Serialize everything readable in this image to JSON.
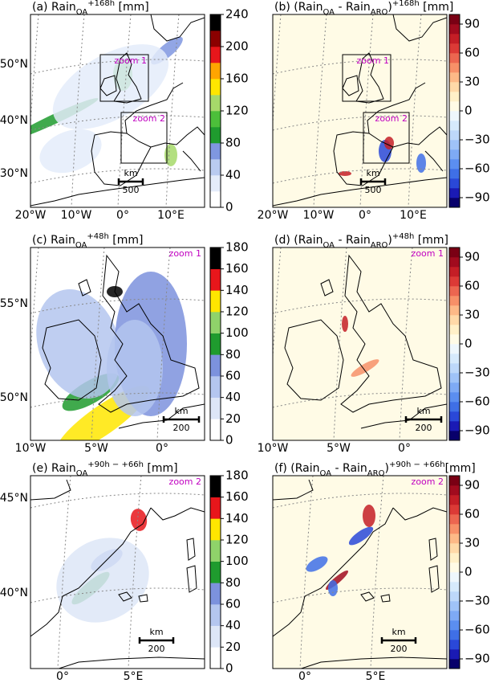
{
  "panels": [
    {
      "title": [
        {
          "text": "(a) Rain"
        },
        {
          "text": "OA",
          "shift": "sub"
        },
        {
          "text": "+168h",
          "shift": "super"
        },
        {
          "text": " [mm]"
        }
      ],
      "lat_labels": [
        "50°N",
        "40°N",
        "30°N"
      ],
      "lon_labels": [
        "20°W",
        "10°W",
        "0°",
        "10°E"
      ],
      "zoom_labels": [
        "zoom 1",
        "zoom 2"
      ],
      "scale": {
        "unit": "km",
        "length": "500"
      },
      "colorbar": {
        "lim": [
          0,
          240
        ],
        "ticks": [
          0,
          40,
          80,
          120,
          160,
          200,
          240
        ],
        "colors": [
          "#ffffff",
          "#e4ecfa",
          "#b9cbf0",
          "#7f97e0",
          "#1f9b2e",
          "#4cbf3a",
          "#a6d96a",
          "#ffe600",
          "#ffa500",
          "#e8161b",
          "#8b0000",
          "#000000"
        ]
      }
    },
    {
      "title": [
        {
          "text": "(b) (Rain"
        },
        {
          "text": "OA",
          "shift": "sub"
        },
        {
          "text": " - Rain"
        },
        {
          "text": "ARO",
          "shift": "sub"
        },
        {
          "text": ")"
        },
        {
          "text": "+168h",
          "shift": "super"
        },
        {
          "text": " [mm]"
        }
      ],
      "lon_labels": [
        "20°W",
        "10°W",
        "0°",
        "10°E"
      ],
      "zoom_labels": [
        "zoom 1",
        "zoom 2"
      ],
      "scale": {
        "unit": "km",
        "length": "500"
      },
      "colorbar": {
        "lim": [
          -100,
          100
        ],
        "ticks": [
          {
            "value": -90,
            "label": "−90"
          },
          {
            "value": -60,
            "label": "−60"
          },
          {
            "value": -30,
            "label": "−30"
          },
          0,
          30,
          60,
          90
        ],
        "colors": [
          "#08006b",
          "#1a1ab4",
          "#2a48d8",
          "#3f6fe6",
          "#5b8ef0",
          "#7eaaf5",
          "#9fc3f8",
          "#bdd8fa",
          "#d6eafc",
          "#eef7fc",
          "#fffbe6",
          "#fff0c8",
          "#ffd9a8",
          "#fdb987",
          "#f79068",
          "#ec6650",
          "#dc3a36",
          "#c41e26",
          "#a10b1e",
          "#7a0014"
        ]
      }
    },
    {
      "title": [
        {
          "text": "(c) Rain"
        },
        {
          "text": "OA",
          "shift": "sub"
        },
        {
          "text": "+48h",
          "shift": "super"
        },
        {
          "text": " [mm]"
        }
      ],
      "lat_labels": [
        "55°N",
        "50°N"
      ],
      "lon_labels": [
        "10°W",
        "5°W",
        "0°"
      ],
      "zoom_labels": [
        "zoom 1"
      ],
      "scale": {
        "unit": "km",
        "length": "200"
      },
      "colorbar": {
        "lim": [
          0,
          180
        ],
        "ticks": [
          0,
          20,
          40,
          60,
          80,
          100,
          120,
          140,
          160,
          180
        ],
        "colors": [
          "#ffffff",
          "#dde6f7",
          "#b4c6ef",
          "#7c92dd",
          "#1f9b2e",
          "#8fd36a",
          "#ffe600",
          "#e8161b",
          "#000000"
        ]
      }
    },
    {
      "title": [
        {
          "text": "(d) (Rain"
        },
        {
          "text": "OA",
          "shift": "sub"
        },
        {
          "text": " - Rain"
        },
        {
          "text": "ARO",
          "shift": "sub"
        },
        {
          "text": ")"
        },
        {
          "text": "+48h",
          "shift": "super"
        },
        {
          "text": " [mm]"
        }
      ],
      "lon_labels": [
        "10°W",
        "5°W",
        "0°"
      ],
      "zoom_labels": [
        "zoom 1"
      ],
      "scale": {
        "unit": "km",
        "length": "200"
      },
      "colorbar": {
        "lim": [
          -100,
          100
        ],
        "ticks": [
          {
            "value": -90,
            "label": "−90"
          },
          {
            "value": -60,
            "label": "−60"
          },
          {
            "value": -30,
            "label": "−30"
          },
          0,
          30,
          60,
          90
        ],
        "colors": [
          "#08006b",
          "#1a1ab4",
          "#2a48d8",
          "#3f6fe6",
          "#5b8ef0",
          "#7eaaf5",
          "#9fc3f8",
          "#bdd8fa",
          "#d6eafc",
          "#eef7fc",
          "#fffbe6",
          "#fff0c8",
          "#ffd9a8",
          "#fdb987",
          "#f79068",
          "#ec6650",
          "#dc3a36",
          "#c41e26",
          "#a10b1e",
          "#7a0014"
        ]
      }
    },
    {
      "title": [
        {
          "text": "(e) Rain"
        },
        {
          "text": "OA",
          "shift": "sub"
        },
        {
          "text": "+90h − +66h",
          "shift": "super"
        },
        {
          "text": " [mm]"
        }
      ],
      "lat_labels": [
        "45°N",
        "40°N"
      ],
      "lon_labels": [
        "0°",
        "5°E"
      ],
      "zoom_labels": [
        "zoom 2"
      ],
      "scale": {
        "unit": "km",
        "length": "200"
      },
      "colorbar": {
        "lim": [
          0,
          180
        ],
        "ticks": [
          0,
          20,
          40,
          60,
          80,
          100,
          120,
          140,
          160,
          180
        ],
        "colors": [
          "#ffffff",
          "#dde6f7",
          "#b4c6ef",
          "#7c92dd",
          "#1f9b2e",
          "#8fd36a",
          "#ffe600",
          "#e8161b",
          "#000000"
        ]
      }
    },
    {
      "title": [
        {
          "text": "(f) (Rain"
        },
        {
          "text": "OA",
          "shift": "sub"
        },
        {
          "text": " - Rain"
        },
        {
          "text": "ARO",
          "shift": "sub"
        },
        {
          "text": ")"
        },
        {
          "text": "+90h − +66h",
          "shift": "super"
        },
        {
          "text": "[mm]"
        }
      ],
      "lon_labels": [
        "0°",
        "5°E"
      ],
      "zoom_labels": [
        "zoom 2"
      ],
      "scale": {
        "unit": "km",
        "length": "200"
      },
      "colorbar": {
        "lim": [
          -100,
          100
        ],
        "ticks": [
          {
            "value": -90,
            "label": "−90"
          },
          {
            "value": -60,
            "label": "−60"
          },
          {
            "value": -30,
            "label": "−30"
          },
          0,
          30,
          60,
          90
        ],
        "colors": [
          "#08006b",
          "#1a1ab4",
          "#2a48d8",
          "#3f6fe6",
          "#5b8ef0",
          "#7eaaf5",
          "#9fc3f8",
          "#bdd8fa",
          "#d6eafc",
          "#eef7fc",
          "#fffbe6",
          "#fff0c8",
          "#ffd9a8",
          "#fdb987",
          "#f79068",
          "#ec6650",
          "#dc3a36",
          "#c41e26",
          "#a10b1e",
          "#7a0014"
        ]
      }
    }
  ]
}
